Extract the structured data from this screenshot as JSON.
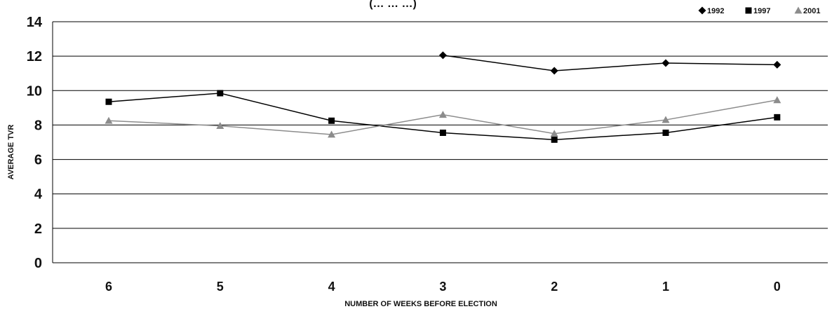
{
  "chart_data": {
    "type": "line",
    "title": "(… … …)",
    "xlabel": "NUMBER OF WEEKS BEFORE ELECTION",
    "ylabel": "AVERAGE TVR",
    "categories": [
      "6",
      "5",
      "4",
      "3",
      "2",
      "1",
      "0"
    ],
    "ylim": [
      0,
      14
    ],
    "yticks": [
      0,
      2,
      4,
      6,
      8,
      10,
      12,
      14
    ],
    "grid": true,
    "legend_position": "top-right",
    "series": [
      {
        "name": "1992",
        "marker": "diamond",
        "color": "#000000",
        "values": [
          null,
          null,
          null,
          12.05,
          11.15,
          11.6,
          11.5
        ]
      },
      {
        "name": "1997",
        "marker": "square",
        "color": "#000000",
        "values": [
          9.35,
          9.85,
          8.25,
          7.55,
          7.15,
          7.55,
          8.45
        ]
      },
      {
        "name": "2001",
        "marker": "triangle",
        "color": "#8c8c8c",
        "values": [
          8.25,
          7.95,
          7.45,
          8.6,
          7.5,
          8.3,
          9.45
        ]
      }
    ]
  }
}
